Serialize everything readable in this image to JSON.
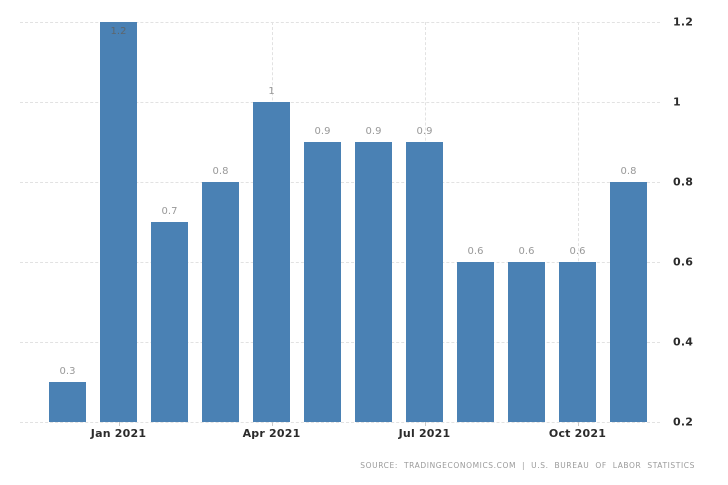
{
  "chart_data": {
    "type": "bar",
    "title": "",
    "values": [
      0.3,
      1.2,
      0.7,
      0.8,
      1,
      0.9,
      0.9,
      0.9,
      0.6,
      0.6,
      0.6,
      0.8
    ],
    "bar_labels": [
      "0.3",
      "1.2",
      "0.7",
      "0.8",
      "1",
      "0.9",
      "0.9",
      "0.9",
      "0.6",
      "0.6",
      "0.6",
      "0.8"
    ],
    "x_ticks": [
      {
        "label": "Jan 2021",
        "bar_index": 1
      },
      {
        "label": "Apr 2021",
        "bar_index": 4
      },
      {
        "label": "Jul 2021",
        "bar_index": 7
      },
      {
        "label": "Oct 2021",
        "bar_index": 10
      }
    ],
    "y_axis": {
      "position": "right",
      "min": 0.2,
      "max": 1.2,
      "ticks": [
        0.2,
        0.4,
        0.6,
        0.8,
        1,
        1.2
      ],
      "tick_labels": [
        "0.2",
        "0.4",
        "0.6",
        "0.8",
        "1",
        "1.2"
      ]
    },
    "grid": true,
    "legend": false,
    "colors": {
      "bar": "#4a81b4",
      "grid": "#e2e2e2",
      "data_label": "#999999",
      "data_label_inside": "#5d666d",
      "axis_label": "#2b2b2b",
      "tick": "#c9c9c9",
      "source": "#9a9a9a"
    },
    "source": "SOURCE: TRADINGECONOMICS.COM | U.S. BUREAU OF LABOR STATISTICS"
  }
}
